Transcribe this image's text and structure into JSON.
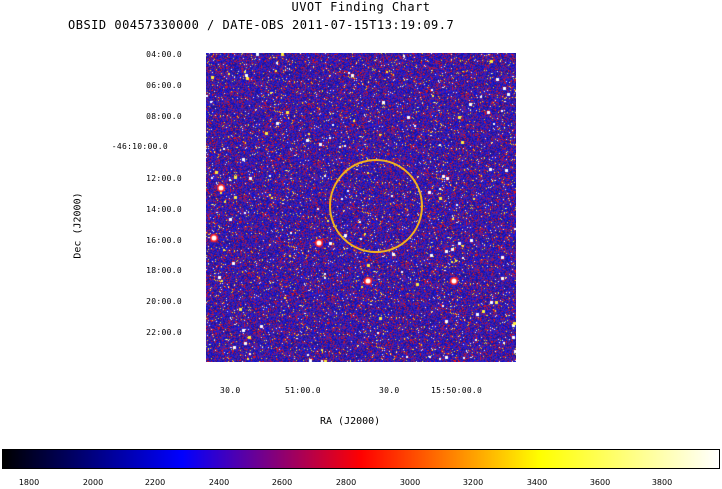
{
  "chart_data": {
    "type": "heatmap",
    "title": "UVOT Finding Chart",
    "subtitle": "OBSID 00457330000 / DATE-OBS 2011-07-15T13:19:09.7",
    "xlabel": "RA (J2000)",
    "ylabel": "Dec (J2000)",
    "x_ticks": [
      "30.0",
      "51:00.0",
      "30.0",
      "15:50:00.0"
    ],
    "y_ticks": [
      "04:00.0",
      "06:00.0",
      "08:00.0",
      "-46:10:00.0",
      "12:00.0",
      "14:00.0",
      "16:00.0",
      "18:00.0",
      "20:00.0",
      "22:00.0"
    ],
    "colorbar": {
      "ticks": [
        "1800",
        "2000",
        "2200",
        "2400",
        "2600",
        "2800",
        "3000",
        "3200",
        "3400",
        "3600",
        "3800"
      ],
      "colors": [
        "#000000",
        "#0000ff",
        "#ff0000",
        "#ffff00",
        "#ffffff"
      ]
    },
    "marker": {
      "shape": "circle",
      "color": "#f0b020"
    }
  }
}
